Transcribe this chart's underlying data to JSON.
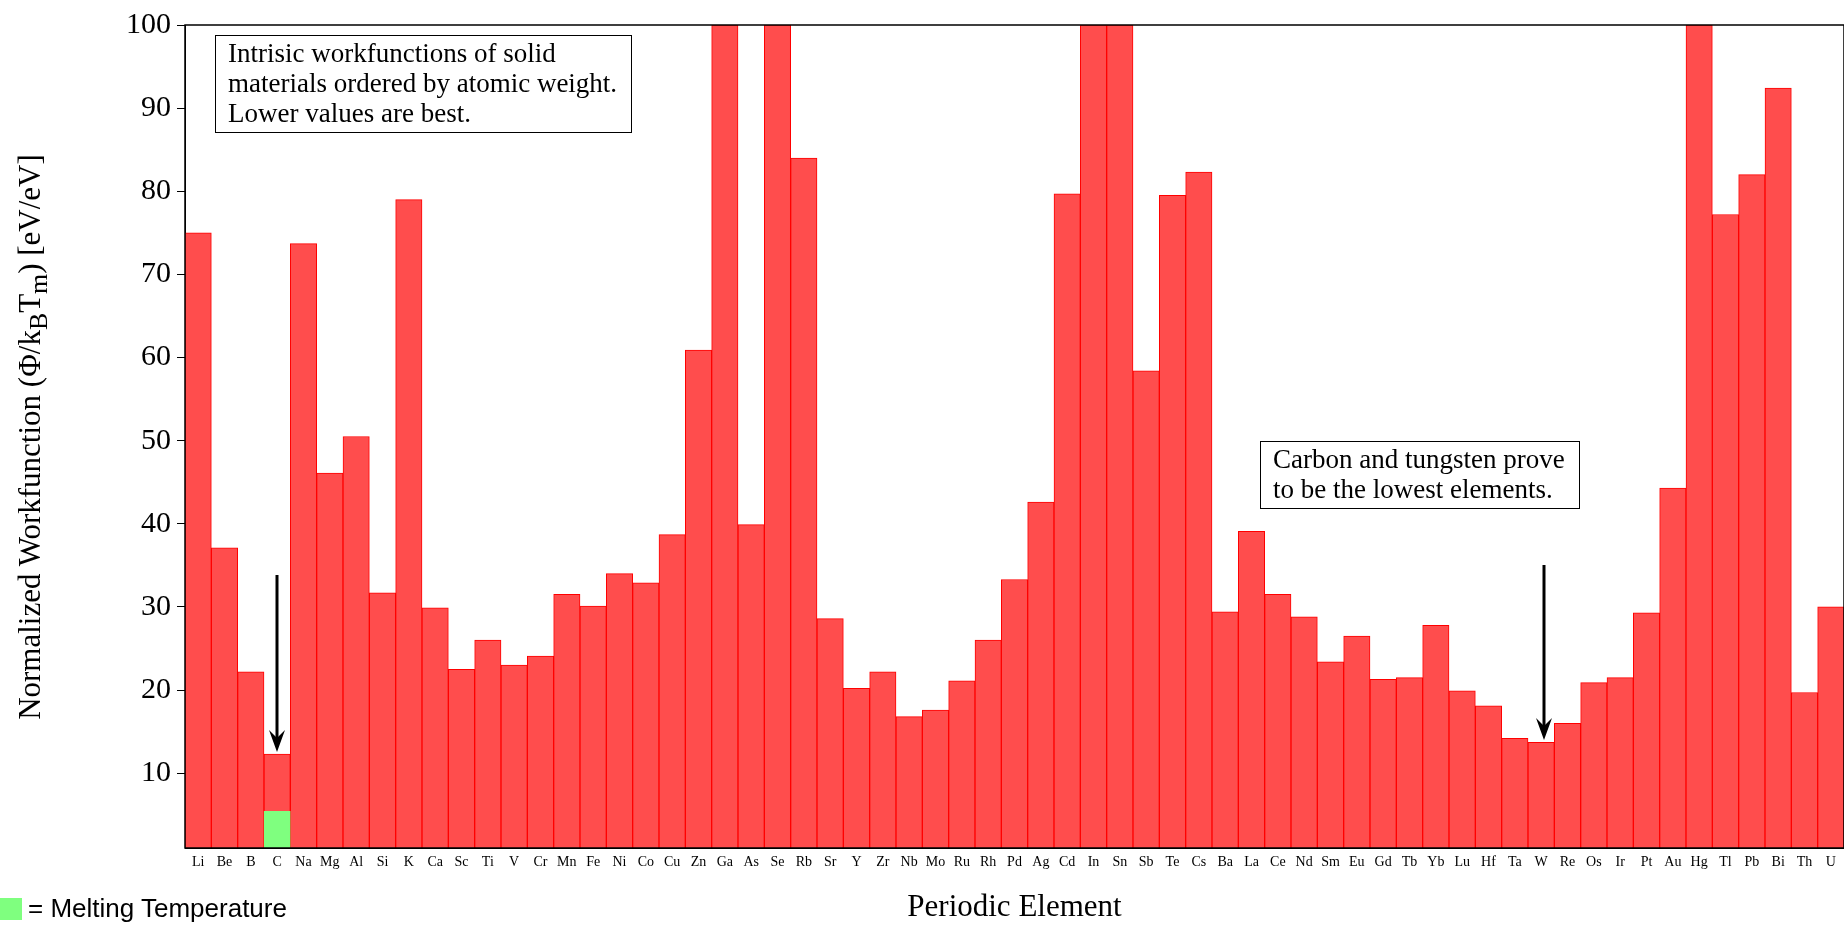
{
  "chart_data": {
    "type": "bar",
    "xlabel": "Periodic Element",
    "ylabel": "Normalized Workfunction (Φ/k$_{B}$T$_{m}$) [eV/eV]",
    "categories": [
      "Li",
      "Be",
      "B",
      "C",
      "Na",
      "Mg",
      "Al",
      "Si",
      "K",
      "Ca",
      "Sc",
      "Ti",
      "V",
      "Cr",
      "Mn",
      "Fe",
      "Ni",
      "Co",
      "Cu",
      "Zn",
      "Ga",
      "As",
      "Se",
      "Rb",
      "Sr",
      "Y",
      "Zr",
      "Nb",
      "Mo",
      "Ru",
      "Rh",
      "Pd",
      "Ag",
      "Cd",
      "In",
      "Sn",
      "Sb",
      "Te",
      "Cs",
      "Ba",
      "La",
      "Ce",
      "Nd",
      "Sm",
      "Eu",
      "Gd",
      "Tb",
      "Yb",
      "Lu",
      "Hf",
      "Ta",
      "W",
      "Re",
      "Os",
      "Ir",
      "Pt",
      "Au",
      "Hg",
      "Tl",
      "Pb",
      "Bi",
      "Th",
      "U"
    ],
    "series": [
      {
        "color": "#ff4d4d",
        "values": [
          75.0,
          37.1,
          22.2,
          12.3,
          73.7,
          46.1,
          50.5,
          31.7,
          79.0,
          29.9,
          22.5,
          26.0,
          23.0,
          24.1,
          31.5,
          30.1,
          34.0,
          32.9,
          38.7,
          60.9,
          100,
          39.9,
          100,
          84.0,
          28.6,
          20.2,
          22.2,
          16.8,
          17.6,
          21.1,
          26.0,
          33.3,
          42.6,
          79.7,
          100,
          100,
          58.4,
          79.5,
          82.3,
          29.4,
          39.1,
          31.5,
          28.8,
          23.4,
          26.5,
          21.3,
          21.5,
          27.8,
          19.9,
          18.1,
          14.2,
          13.7,
          16.0,
          20.9,
          21.5,
          29.3,
          44.3,
          100,
          77.2,
          82.0,
          92.4,
          19.7,
          30.0
        ]
      },
      {
        "name": "= Melting Temperature",
        "color": "#7fff7f",
        "values": [
          null,
          null,
          null,
          5.4,
          null,
          null,
          null,
          null,
          null,
          null,
          null,
          null,
          null,
          null,
          null,
          null,
          null,
          null,
          null,
          null,
          null,
          null,
          null,
          null,
          null,
          null,
          null,
          null,
          null,
          null,
          null,
          null,
          null,
          null,
          null,
          null,
          null,
          null,
          null,
          null,
          null,
          null,
          null,
          null,
          null,
          null,
          null,
          null,
          null,
          null,
          null,
          null,
          null,
          null,
          null,
          null,
          null,
          null,
          null,
          null,
          null,
          null,
          null
        ]
      }
    ],
    "ylim": [
      1,
      100
    ],
    "yticks": [
      10,
      20,
      30,
      40,
      50,
      60,
      70,
      80,
      90,
      100
    ],
    "grid": false,
    "legend": "bottom left",
    "annotations": [
      "Intrisic workfunctions of solid\nmaterials ordered by atomic weight.\nLower values are best.",
      "Carbon and tungsten prove\nto be the lowest elements."
    ]
  }
}
